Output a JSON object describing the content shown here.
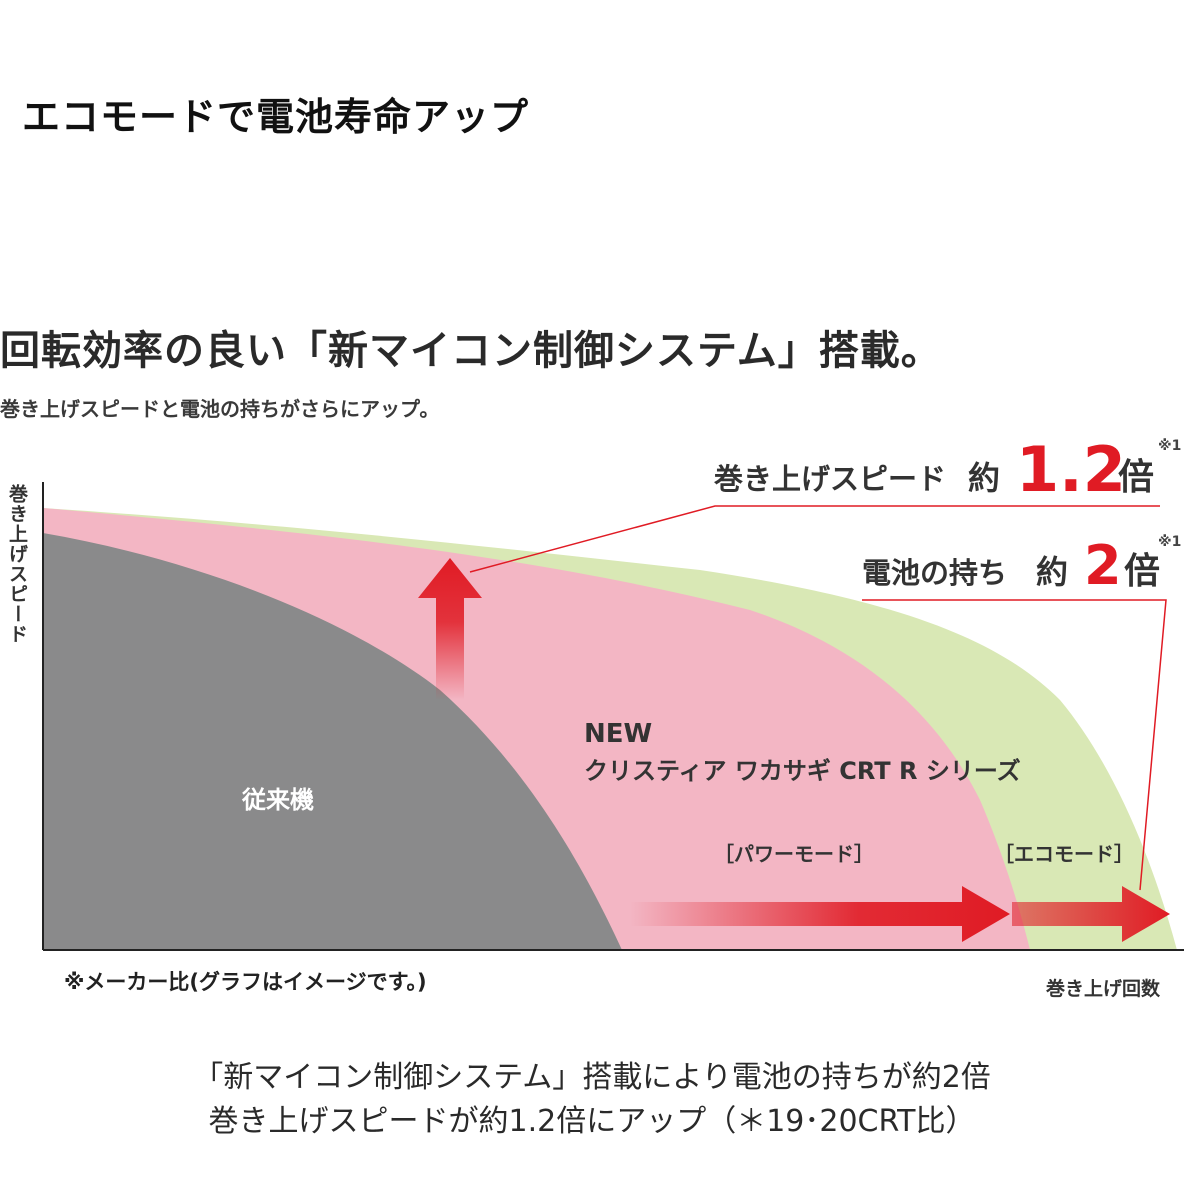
{
  "page": {
    "top_title": "エコモードで電池寿命アップ",
    "caption_line1": "「新マイコン制御システム」搭載により電池の持ちが約2倍",
    "caption_line2": "巻き上げスピードが約1.2倍にアップ（＊19･20CRT比）"
  },
  "chart_data": {
    "type": "area",
    "title": "回転効率の良い「新マイコン制御システム」搭載。",
    "subtitle": "巻き上げスピードと電池の持ちがさらにアップ。",
    "ylabel": "巻き上げスピード",
    "xlabel": "巻き上げ回数",
    "footnote": "※メーカー比(グラフはイメージです。)",
    "series": [
      {
        "name": "従来機",
        "color": "#8a8a8b"
      },
      {
        "name": "NEW クリスティア ワカサギ CRT R シリーズ",
        "label_line1": "NEW",
        "label_line2": "クリスティア ワカサギ CRT R シリーズ",
        "color": "#f3b6c4"
      },
      {
        "color": "#d9e8b5"
      }
    ],
    "modes": [
      "［パワーモード］",
      "［エコモード］"
    ],
    "annotations": [
      {
        "label": "巻き上げスピード",
        "prefix": "約",
        "value": "1.2",
        "unit": "倍",
        "note": "※1"
      },
      {
        "label": "電池の持ち",
        "prefix": "約",
        "value": "2",
        "unit": "倍",
        "note": "※1"
      }
    ],
    "colors": {
      "accent_red": "#e01b24",
      "axis": "#222222"
    }
  }
}
